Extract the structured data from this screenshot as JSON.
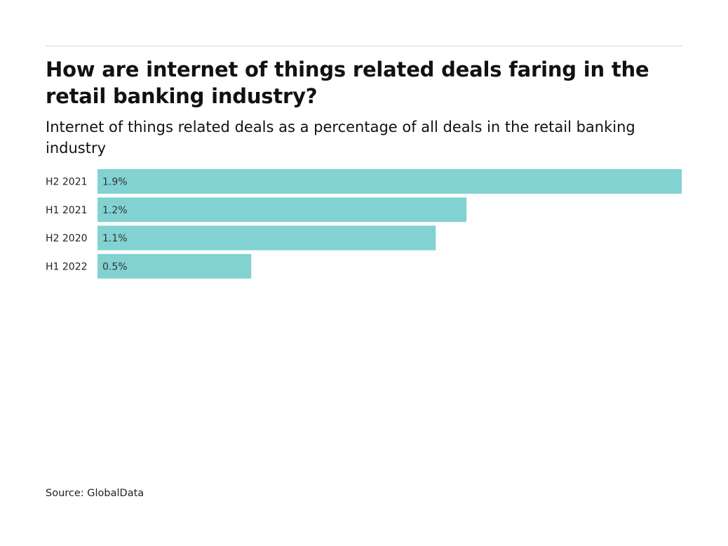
{
  "title": "How are internet of things related deals faring in the retail banking industry?",
  "subtitle": "Internet of things related deals as a percentage of all deals in the retail banking industry",
  "source": "Source: GlobalData",
  "colors": {
    "bar": "#82d2d2",
    "text": "#111111",
    "rule": "#d9d9d9"
  },
  "chart_data": {
    "type": "bar",
    "orientation": "horizontal",
    "categories": [
      "H2 2021",
      "H1 2021",
      "H2 2020",
      "H1 2022"
    ],
    "values": [
      1.9,
      1.2,
      1.1,
      0.5
    ],
    "value_labels": [
      "1.9%",
      "1.2%",
      "1.1%",
      "0.5%"
    ],
    "unit": "%",
    "xlim": [
      0,
      1.9
    ],
    "grid": false,
    "legend": "none"
  }
}
